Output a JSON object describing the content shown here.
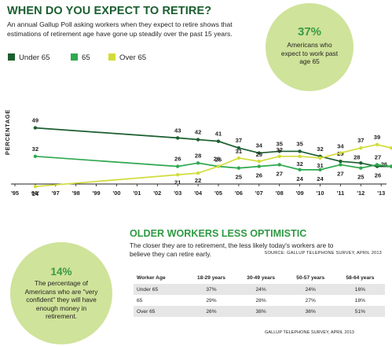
{
  "header": {
    "title": "WHEN DO YOU EXPECT TO RETIRE?",
    "intro": "An annual Gallup Poll asking workers when they expect to retire shows that estimations of retirement age have gone up steadily over the past 15 years."
  },
  "callout_top": {
    "value": "37%",
    "text": "Americans who expect to work past age 65"
  },
  "chart_data": {
    "type": "line",
    "title": "WHEN DO YOU EXPECT TO RETIRE?",
    "ylabel": "PERCENTAGE",
    "x": [
      "'95",
      "96'",
      "'97",
      "'98",
      "'99",
      "'00",
      "'01",
      "'02",
      "'03",
      "'04",
      "'05",
      "'06",
      "'07",
      "'08",
      "'09",
      "'10",
      "'11",
      "'12",
      "'13"
    ],
    "series": [
      {
        "name": "Under 65",
        "color": "#1b5e2f",
        "points": [
          [
            1,
            49
          ],
          [
            8,
            43
          ],
          [
            9,
            42
          ],
          [
            10,
            41
          ],
          [
            11,
            37
          ],
          [
            12,
            34
          ],
          [
            13,
            35
          ],
          [
            14,
            35
          ],
          [
            15,
            32
          ],
          [
            16,
            29
          ],
          [
            17,
            28
          ],
          [
            17.8,
            26
          ],
          [
            18.5,
            26
          ]
        ]
      },
      {
        "name": "65",
        "color": "#2fa84f",
        "points": [
          [
            1,
            32
          ],
          [
            8,
            26
          ],
          [
            9,
            28
          ],
          [
            10,
            26
          ],
          [
            11,
            25
          ],
          [
            12,
            26
          ],
          [
            13,
            27
          ],
          [
            14,
            24
          ],
          [
            15,
            24
          ],
          [
            16,
            27
          ],
          [
            17,
            25
          ],
          [
            17.8,
            27
          ],
          [
            18.5,
            26
          ]
        ]
      },
      {
        "name": "Over 65",
        "color": "#d2dc3a",
        "points": [
          [
            1,
            14
          ],
          [
            8,
            21
          ],
          [
            9,
            22
          ],
          [
            10,
            26
          ],
          [
            11,
            31
          ],
          [
            12,
            29
          ],
          [
            13,
            32
          ],
          [
            14,
            32
          ],
          [
            15,
            31
          ],
          [
            16,
            34
          ],
          [
            17,
            37
          ],
          [
            17.8,
            39
          ],
          [
            18.5,
            37
          ]
        ]
      }
    ],
    "legend_position": "top-left",
    "source": "SOURCE: GALLUP TELEPHONE SURVEY, APRIL 2013"
  },
  "section2": {
    "title": "OLDER WORKERS LESS OPTIMISTIC",
    "intro": "The closer they are to retirement, the less likely today's workers are to believe they can retire early."
  },
  "callout_bottom": {
    "value": "14%",
    "text": "The percentage of Americans who are \"very confident\" they will have enough money in retirement."
  },
  "table": {
    "headers": [
      "Worker Age",
      "18-29 years",
      "30-49 years",
      "50-57 years",
      "58-64 years"
    ],
    "rows": [
      [
        "Under 65",
        "37%",
        "24%",
        "24%",
        "16%"
      ],
      [
        "65",
        "29%",
        "28%",
        "27%",
        "18%"
      ],
      [
        "Over 65",
        "26%",
        "38%",
        "36%",
        "51%"
      ]
    ],
    "source": "GALLUP TELEPHONE SURVEY, APRIL 2013"
  }
}
